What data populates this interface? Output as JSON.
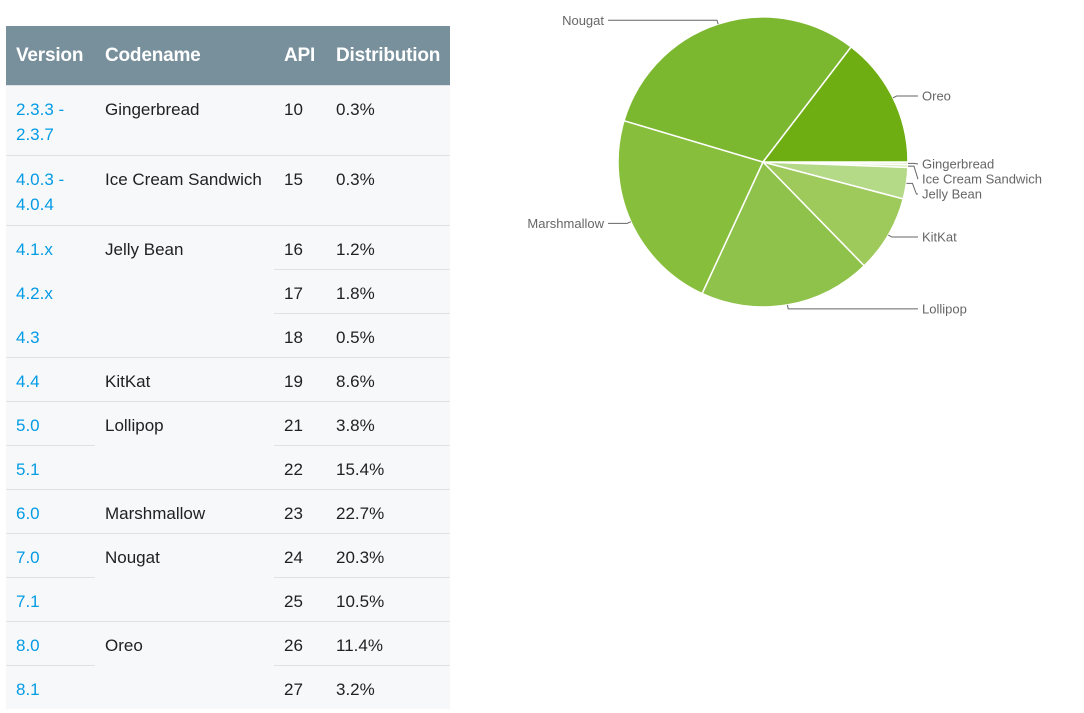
{
  "table": {
    "headers": [
      "Version",
      "Codename",
      "API",
      "Distribution"
    ],
    "rows": [
      {
        "version": [
          "2.3.3 -",
          "2.3.7"
        ],
        "codename": "Gingerbread",
        "api": "10",
        "dist": "0.3%"
      },
      {
        "version": [
          "4.0.3 -",
          "4.0.4"
        ],
        "codename": "Ice Cream Sandwich",
        "api": "15",
        "dist": "0.3%"
      },
      {
        "version": [
          "4.1.x"
        ],
        "codename": "Jelly Bean",
        "api": "16",
        "dist": "1.2%"
      },
      {
        "version": [
          "4.2.x"
        ],
        "codename": "",
        "api": "17",
        "dist": "1.8%"
      },
      {
        "version": [
          "4.3"
        ],
        "codename": "",
        "api": "18",
        "dist": "0.5%"
      },
      {
        "version": [
          "4.4"
        ],
        "codename": "KitKat",
        "api": "19",
        "dist": "8.6%"
      },
      {
        "version": [
          "5.0"
        ],
        "codename": "Lollipop",
        "api": "21",
        "dist": "3.8%"
      },
      {
        "version": [
          "5.1"
        ],
        "codename": "",
        "api": "22",
        "dist": "15.4%"
      },
      {
        "version": [
          "6.0"
        ],
        "codename": "Marshmallow",
        "api": "23",
        "dist": "22.7%"
      },
      {
        "version": [
          "7.0"
        ],
        "codename": "Nougat",
        "api": "24",
        "dist": "20.3%"
      },
      {
        "version": [
          "7.1"
        ],
        "codename": "",
        "api": "25",
        "dist": "10.5%"
      },
      {
        "version": [
          "8.0"
        ],
        "codename": "Oreo",
        "api": "26",
        "dist": "11.4%"
      },
      {
        "version": [
          "8.1"
        ],
        "codename": "",
        "api": "27",
        "dist": "3.2%"
      }
    ]
  },
  "chart_data": {
    "type": "pie",
    "labels": [
      "Gingerbread",
      "Ice Cream Sandwich",
      "Jelly Bean",
      "KitKat",
      "Lollipop",
      "Marshmallow",
      "Nougat",
      "Oreo"
    ],
    "values": [
      0.3,
      0.3,
      3.5,
      8.6,
      19.2,
      22.7,
      30.8,
      14.6
    ],
    "colors": [
      "#e3efcd",
      "#d3e8b1",
      "#b4d987",
      "#9ec95b",
      "#8fc24a",
      "#87bf3c",
      "#7cb730",
      "#6fae12"
    ],
    "start_angle_deg": 0,
    "direction": "clockwise"
  }
}
